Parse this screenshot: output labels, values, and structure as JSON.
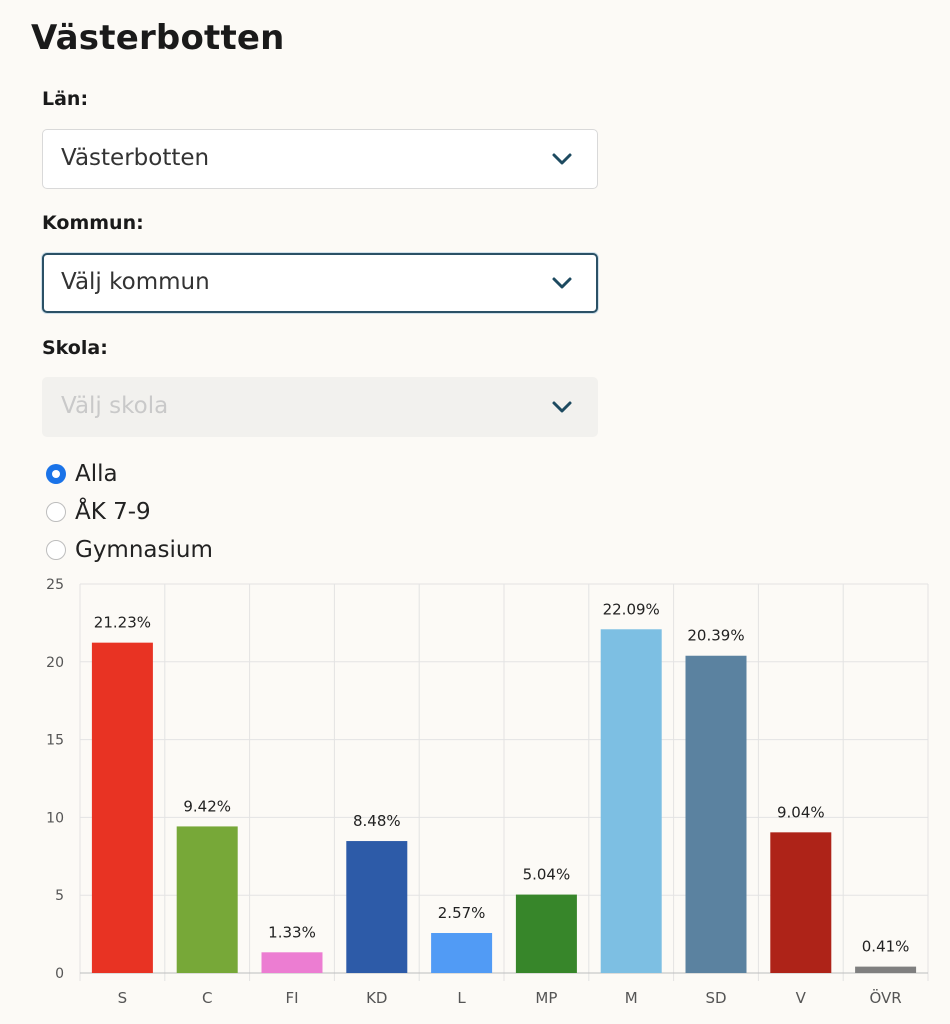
{
  "page": {
    "title": "Västerbotten"
  },
  "filters": {
    "lan": {
      "label": "Län:",
      "value": "Västerbotten"
    },
    "kommun": {
      "label": "Kommun:",
      "value": "Välj kommun"
    },
    "skola": {
      "label": "Skola:",
      "value": "Välj skola"
    },
    "level_options": [
      {
        "label": "Alla",
        "checked": true
      },
      {
        "label": "ÅK 7-9",
        "checked": false
      },
      {
        "label": "Gymnasium",
        "checked": false
      }
    ]
  },
  "icons": {
    "select_chevron": "chevron-down-icon"
  },
  "colors": {
    "radio_accent": "#1a73e8",
    "chevron": "#1d4a60"
  },
  "chart_data": {
    "type": "bar",
    "categories": [
      "S",
      "C",
      "FI",
      "KD",
      "L",
      "MP",
      "M",
      "SD",
      "V",
      "ÖVR"
    ],
    "values": [
      21.23,
      9.42,
      1.33,
      8.48,
      2.57,
      5.04,
      22.09,
      20.39,
      9.04,
      0.41
    ],
    "value_labels": [
      "21.23%",
      "9.42%",
      "1.33%",
      "8.48%",
      "2.57%",
      "5.04%",
      "22.09%",
      "20.39%",
      "9.04%",
      "0.41%"
    ],
    "colors": [
      "#e83323",
      "#77a838",
      "#ec7dd2",
      "#2d5ba8",
      "#519bf5",
      "#37862a",
      "#7dbfe3",
      "#5b82a0",
      "#ae2318",
      "#7f7f7f"
    ],
    "y_ticks": [
      "0",
      "5",
      "10",
      "15",
      "20",
      "25"
    ],
    "ylim": [
      0,
      25
    ],
    "grid": true,
    "legend": "none"
  }
}
